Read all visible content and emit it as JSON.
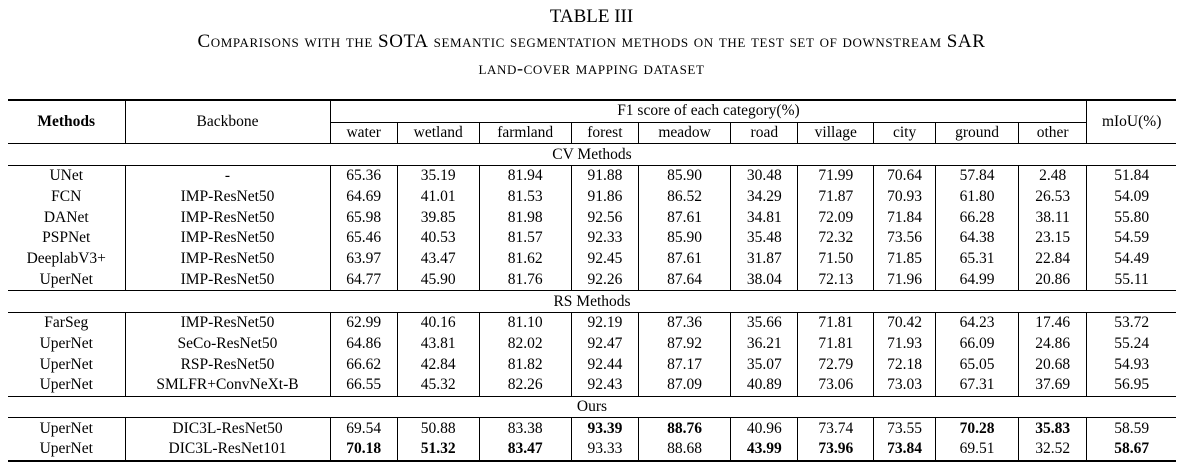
{
  "caption": {
    "label": "TABLE III",
    "title_line1_lead": "C",
    "title_line1_a": "omparisons with the ",
    "title_line1_b": "SOTA",
    "title_line1_c": " semantic segmentation methods on the test set of downstream ",
    "title_line1_d": "SAR",
    "title_line2": "land-cover mapping dataset"
  },
  "header": {
    "methods": "Methods",
    "backbone": "Backbone",
    "f1_group": "F1 score of each category(%)",
    "miou": "mIoU(%)",
    "categories": [
      "water",
      "wetland",
      "farmland",
      "forest",
      "meadow",
      "road",
      "village",
      "city",
      "ground",
      "other"
    ]
  },
  "sections": [
    {
      "title": "CV Methods",
      "rows": [
        {
          "method": "UNet",
          "backbone": "-",
          "values": [
            "65.36",
            "35.19",
            "81.94",
            "91.88",
            "85.90",
            "30.48",
            "71.99",
            "70.64",
            "57.84",
            "2.48"
          ],
          "miou": "51.84",
          "bold": []
        },
        {
          "method": "FCN",
          "backbone": "IMP-ResNet50",
          "values": [
            "64.69",
            "41.01",
            "81.53",
            "91.86",
            "86.52",
            "34.29",
            "71.87",
            "70.93",
            "61.80",
            "26.53"
          ],
          "miou": "54.09",
          "bold": []
        },
        {
          "method": "DANet",
          "backbone": "IMP-ResNet50",
          "values": [
            "65.98",
            "39.85",
            "81.98",
            "92.56",
            "87.61",
            "34.81",
            "72.09",
            "71.84",
            "66.28",
            "38.11"
          ],
          "miou": "55.80",
          "bold": []
        },
        {
          "method": "PSPNet",
          "backbone": "IMP-ResNet50",
          "values": [
            "65.46",
            "40.53",
            "81.57",
            "92.33",
            "85.90",
            "35.48",
            "72.32",
            "73.56",
            "64.38",
            "23.15"
          ],
          "miou": "54.59",
          "bold": []
        },
        {
          "method": "DeeplabV3+",
          "backbone": "IMP-ResNet50",
          "values": [
            "63.97",
            "43.47",
            "81.62",
            "92.45",
            "87.61",
            "31.87",
            "71.50",
            "71.85",
            "65.31",
            "22.84"
          ],
          "miou": "54.49",
          "bold": []
        },
        {
          "method": "UperNet",
          "backbone": "IMP-ResNet50",
          "values": [
            "64.77",
            "45.90",
            "81.76",
            "92.26",
            "87.64",
            "38.04",
            "72.13",
            "71.96",
            "64.99",
            "20.86"
          ],
          "miou": "55.11",
          "bold": []
        }
      ]
    },
    {
      "title": "RS Methods",
      "rows": [
        {
          "method": "FarSeg",
          "backbone": "IMP-ResNet50",
          "values": [
            "62.99",
            "40.16",
            "81.10",
            "92.19",
            "87.36",
            "35.66",
            "71.81",
            "70.42",
            "64.23",
            "17.46"
          ],
          "miou": "53.72",
          "bold": []
        },
        {
          "method": "UperNet",
          "backbone": "SeCo-ResNet50",
          "values": [
            "64.86",
            "43.81",
            "82.02",
            "92.47",
            "87.92",
            "36.21",
            "71.81",
            "71.93",
            "66.09",
            "24.86"
          ],
          "miou": "55.24",
          "bold": []
        },
        {
          "method": "UperNet",
          "backbone": "RSP-ResNet50",
          "values": [
            "66.62",
            "42.84",
            "81.82",
            "92.44",
            "87.17",
            "35.07",
            "72.79",
            "72.18",
            "65.05",
            "20.68"
          ],
          "miou": "54.93",
          "bold": []
        },
        {
          "method": "UperNet",
          "backbone": "SMLFR+ConvNeXt-B",
          "values": [
            "66.55",
            "45.32",
            "82.26",
            "92.43",
            "87.09",
            "40.89",
            "73.06",
            "73.03",
            "67.31",
            "37.69"
          ],
          "miou": "56.95",
          "bold": []
        }
      ]
    },
    {
      "title": "Ours",
      "rows": [
        {
          "method": "UperNet",
          "backbone": "DIC3L-ResNet50",
          "values": [
            "69.54",
            "50.88",
            "83.38",
            "93.39",
            "88.76",
            "40.96",
            "73.74",
            "73.55",
            "70.28",
            "35.83"
          ],
          "miou": "58.59",
          "bold": [
            3,
            4,
            8,
            9
          ]
        },
        {
          "method": "UperNet",
          "backbone": "DIC3L-ResNet101",
          "values": [
            "70.18",
            "51.32",
            "83.47",
            "93.33",
            "88.68",
            "43.99",
            "73.96",
            "73.84",
            "69.51",
            "32.52"
          ],
          "miou": "58.67",
          "bold": [
            0,
            1,
            2,
            5,
            6,
            7,
            10
          ]
        }
      ]
    }
  ]
}
